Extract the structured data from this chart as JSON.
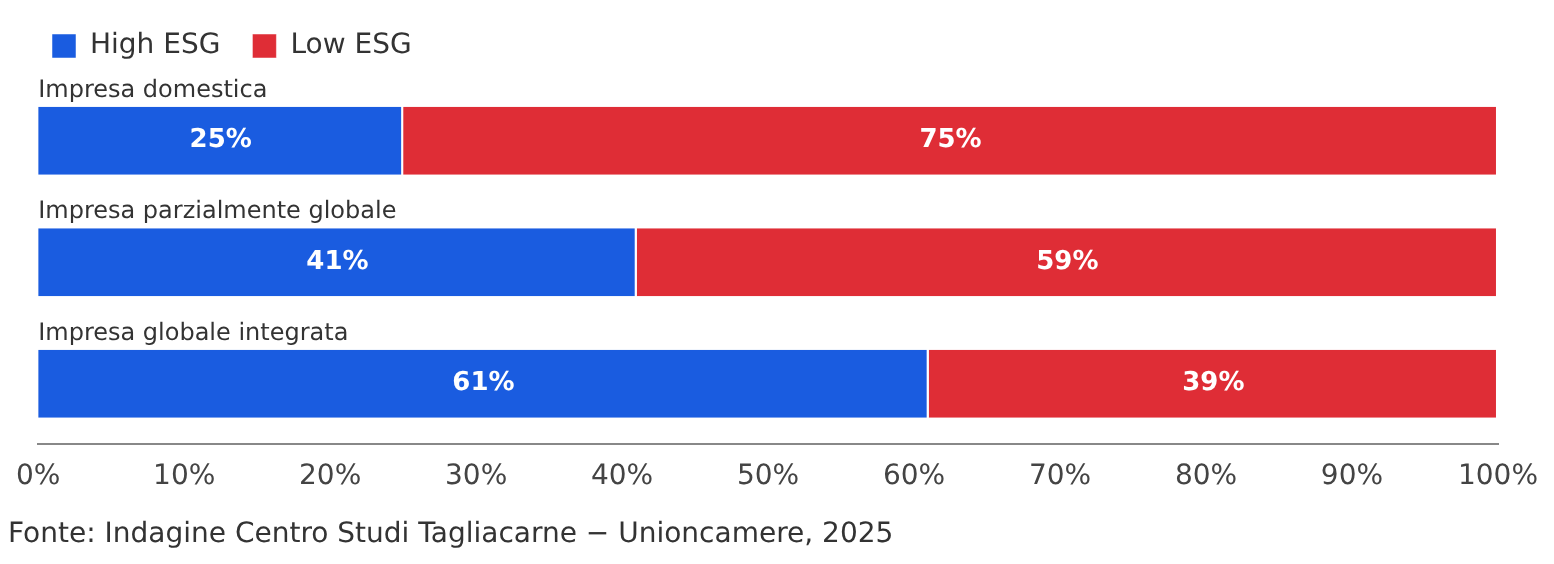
{
  "chart_data": {
    "type": "bar",
    "orientation": "horizontal",
    "stacked": true,
    "categories": [
      "Impresa domestica",
      "Impresa parzialmente globale",
      "Impresa globale integrata"
    ],
    "series": [
      {
        "name": "High ESG",
        "color": "#1a5ce0",
        "values": [
          25,
          41,
          61
        ],
        "value_labels": [
          "25%",
          "41%",
          "61%"
        ]
      },
      {
        "name": "Low ESG",
        "color": "#df2d36",
        "values": [
          75,
          59,
          39
        ],
        "value_labels": [
          "75%",
          "59%",
          "39%"
        ]
      }
    ],
    "xlim": [
      0,
      100
    ],
    "xticks": [
      {
        "value": 0,
        "label": "0%"
      },
      {
        "value": 10,
        "label": "10%"
      },
      {
        "value": 20,
        "label": "20%"
      },
      {
        "value": 30,
        "label": "30%"
      },
      {
        "value": 40,
        "label": "40%"
      },
      {
        "value": 50,
        "label": "50%"
      },
      {
        "value": 60,
        "label": "60%"
      },
      {
        "value": 70,
        "label": "70%"
      },
      {
        "value": 80,
        "label": "80%"
      },
      {
        "value": 90,
        "label": "90%"
      },
      {
        "value": 100,
        "label": "100%"
      }
    ],
    "grid": false,
    "legend": "top left",
    "annotations": [
      "Fonte: Indagine Centro Studi Tagliacarne − Unioncamere, 2025"
    ]
  }
}
